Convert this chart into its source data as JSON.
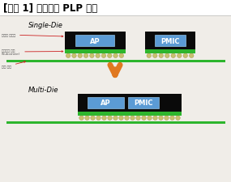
{
  "title": "[그림 1] 삼성전기 PLP 기술",
  "title_fontsize": 8.5,
  "bg_color": "#f0ede8",
  "single_die_label": "Single-Die",
  "multi_die_label": "Multi-Die",
  "label_fontsize": 6,
  "ap_label": "AP",
  "pmic_label": "PMIC",
  "chip_label_fontsize": 6,
  "ann1": "반도체 몰딩재",
  "ann2": "반도체용 기판\n(Substrate)",
  "ann3": "회선 기판",
  "annotation_fontsize": 3.2,
  "mold_color": "#0a0a0a",
  "chip_color": "#5b9bd5",
  "substrate_color": "#2db52d",
  "board_color": "#2db52d",
  "bump_color": "#c8c070",
  "bump_edge_color": "#999944",
  "arrow_color": "#e07820",
  "title_bg": "#ffffff",
  "separator_color": "#bbbbbb",
  "ann_arrow_color": "#cc2222",
  "ann_text_color": "#555555"
}
